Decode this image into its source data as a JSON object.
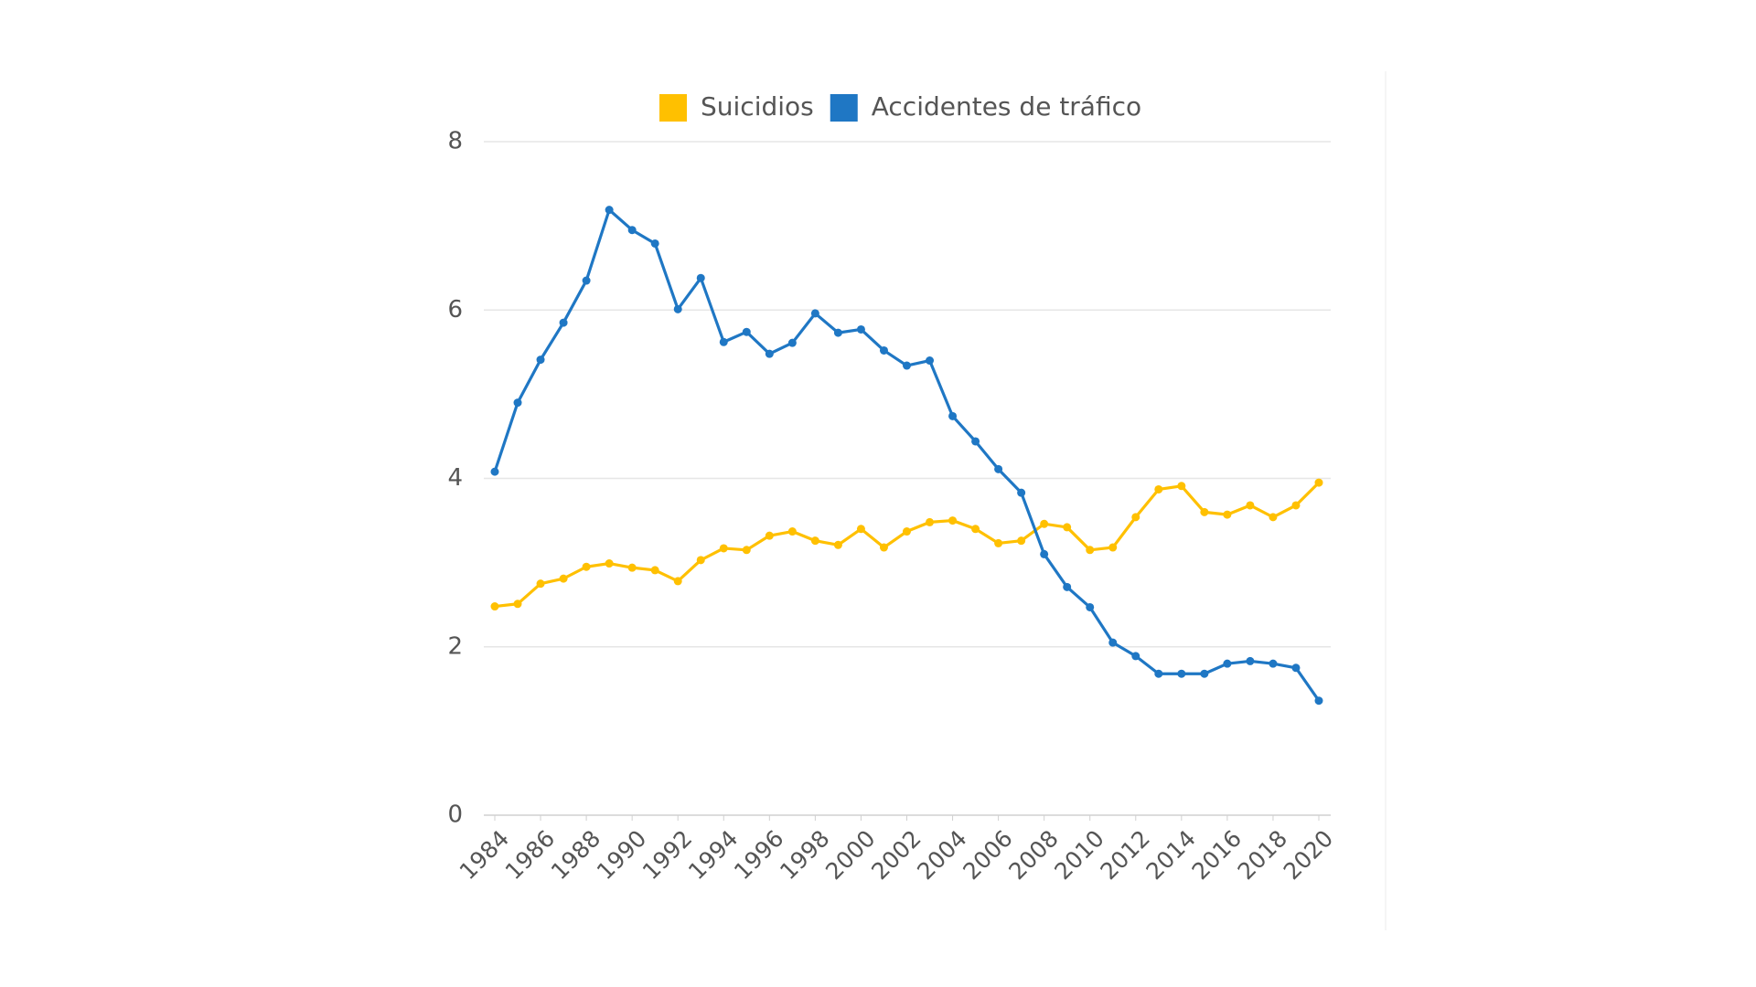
{
  "chart_data": {
    "type": "line",
    "x": [
      1984,
      1985,
      1986,
      1987,
      1988,
      1989,
      1990,
      1991,
      1992,
      1993,
      1994,
      1995,
      1996,
      1997,
      1998,
      1999,
      2000,
      2001,
      2002,
      2003,
      2004,
      2005,
      2006,
      2007,
      2008,
      2009,
      2010,
      2011,
      2012,
      2013,
      2014,
      2015,
      2016,
      2017,
      2018,
      2019,
      2020
    ],
    "series": [
      {
        "name": "Suicidios",
        "color": "#ffc000",
        "values": [
          2.48,
          2.51,
          2.75,
          2.81,
          2.95,
          2.99,
          2.94,
          2.91,
          2.78,
          3.03,
          3.17,
          3.15,
          3.32,
          3.37,
          3.26,
          3.21,
          3.4,
          3.18,
          3.37,
          3.48,
          3.5,
          3.4,
          3.23,
          3.26,
          3.46,
          3.42,
          3.15,
          3.18,
          3.54,
          3.87,
          3.91,
          3.6,
          3.57,
          3.68,
          3.54,
          3.68,
          3.95
        ]
      },
      {
        "name": "Accidentes de tráfico",
        "color": "#1f77c4",
        "values": [
          4.08,
          4.9,
          5.41,
          5.85,
          6.35,
          7.19,
          6.95,
          6.79,
          6.01,
          6.38,
          5.62,
          5.74,
          5.48,
          5.61,
          5.96,
          5.73,
          5.77,
          5.52,
          5.34,
          5.4,
          4.74,
          4.44,
          4.11,
          3.83,
          3.1,
          2.71,
          2.47,
          2.05,
          1.89,
          1.68,
          1.68,
          1.68,
          1.8,
          1.83,
          1.8,
          1.75,
          1.36
        ]
      }
    ],
    "xlim": [
      1984,
      2020
    ],
    "xticks": [
      1984,
      1986,
      1988,
      1990,
      1992,
      1994,
      1996,
      1998,
      2000,
      2002,
      2004,
      2006,
      2008,
      2010,
      2012,
      2014,
      2016,
      2018,
      2020
    ],
    "ylim": [
      0,
      8
    ],
    "yticks": [
      0,
      2,
      4,
      6,
      8
    ],
    "grid": true,
    "legend": "top"
  }
}
